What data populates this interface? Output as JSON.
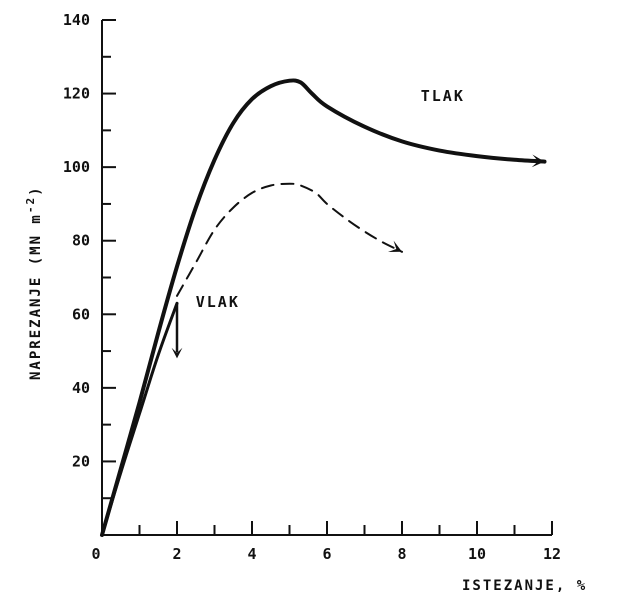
{
  "chart_data": {
    "type": "line",
    "xlabel": "ISTEZANJE,   %",
    "ylabel": "NAPREZANJE (MN m",
    "ylabel_sup": "-2",
    "ylabel_end": ")",
    "xlim": [
      0,
      12
    ],
    "ylim": [
      0,
      140
    ],
    "x_ticks": [
      0,
      2,
      4,
      6,
      8,
      10,
      12
    ],
    "x_tick_labels": [
      "0",
      "2",
      "4",
      "6",
      "8",
      "10",
      "12"
    ],
    "x_minor_ticks": [
      1,
      3,
      5,
      7,
      9,
      11
    ],
    "y_ticks": [
      20,
      40,
      60,
      80,
      100,
      120,
      140
    ],
    "y_tick_labels": [
      "20",
      "40",
      "60",
      "80",
      "100",
      "120",
      "140"
    ],
    "y_minor_ticks": [
      10,
      30,
      50,
      70,
      90,
      110,
      130
    ],
    "grid": false,
    "series": [
      {
        "name": "TLAK",
        "style": "solid-thick",
        "x": [
          0,
          0.5,
          1,
          1.5,
          2,
          2.5,
          3,
          3.5,
          4,
          4.5,
          5,
          5.3,
          5.6,
          6,
          7,
          8,
          9,
          10,
          11,
          11.8
        ],
        "y": [
          0,
          18,
          36,
          55,
          73,
          89,
          102,
          112,
          118.5,
          122,
          123.5,
          123,
          120,
          116.5,
          111,
          107,
          104.5,
          103,
          102,
          101.5
        ]
      },
      {
        "style": "dashed",
        "x": [
          2,
          2.5,
          3,
          3.5,
          4,
          4.5,
          5,
          5.3,
          5.7,
          6,
          6.5,
          7,
          7.5,
          8
        ],
        "y": [
          65,
          74,
          83,
          89,
          93,
          95,
          95.5,
          95,
          93,
          90,
          86,
          82.5,
          79.5,
          77
        ]
      },
      {
        "name": "VLAK",
        "style": "solid",
        "x": [
          0,
          0.5,
          1,
          1.5,
          2
        ],
        "y": [
          0,
          17,
          33,
          49,
          63
        ],
        "drop_to": 48
      }
    ],
    "annotations": [
      {
        "text": "TLAK",
        "x": 8.5,
        "y": 118
      },
      {
        "text": "VLAK",
        "x": 2.5,
        "y": 62
      }
    ]
  }
}
